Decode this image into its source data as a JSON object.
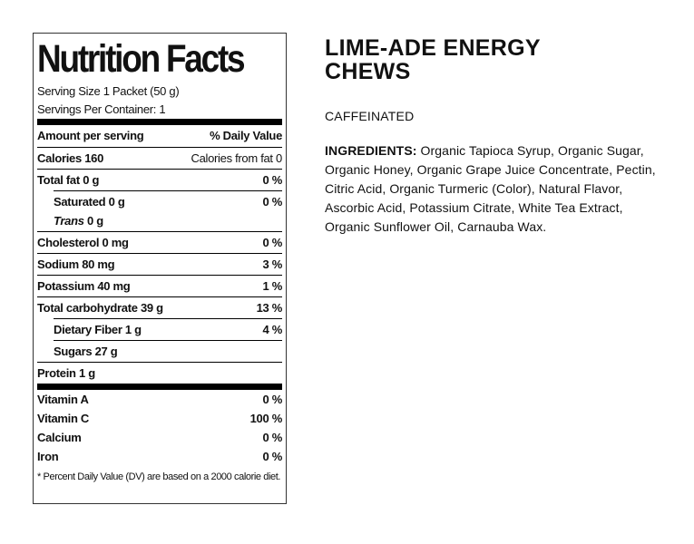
{
  "nutrition": {
    "title": "Nutrition Facts",
    "serving_size": "Serving Size 1 Packet (50 g)",
    "servings_per_container": "Servings Per Container: 1",
    "amount_per_serving": "Amount per serving",
    "daily_value_header": "% Daily Value",
    "calories_label": "Calories 160",
    "calories_from_fat": "Calories from fat  0",
    "nutrients": [
      {
        "name": "Total fat",
        "amount": "0 g",
        "dv": "0 %"
      },
      {
        "name": "Saturated",
        "amount": "0 g",
        "dv": "0 %"
      },
      {
        "name": "Trans",
        "amount": "0 g",
        "dv": ""
      },
      {
        "name": "Cholesterol",
        "amount": "0 mg",
        "dv": "0 %"
      },
      {
        "name": "Sodium",
        "amount": "80 mg",
        "dv": "3 %"
      },
      {
        "name": "Potassium",
        "amount": "40 mg",
        "dv": "1 %"
      },
      {
        "name": "Total carbohydrate",
        "amount": "39 g",
        "dv": "13 %"
      },
      {
        "name": "Dietary Fiber",
        "amount": "1 g",
        "dv": "4 %"
      },
      {
        "name": "Sugars",
        "amount": "27 g",
        "dv": ""
      },
      {
        "name": "Protein",
        "amount": "1 g",
        "dv": ""
      }
    ],
    "vitamins": [
      {
        "name": "Vitamin A",
        "dv": "0 %"
      },
      {
        "name": "Vitamin C",
        "dv": "100 %"
      },
      {
        "name": "Calcium",
        "dv": "0 %"
      },
      {
        "name": "Iron",
        "dv": "0 %"
      }
    ],
    "footnote": "* Percent Daily Value (DV) are based on a 2000 calorie diet."
  },
  "product": {
    "name_line1": "LIME-ADE ENERGY",
    "name_line2": "CHEWS",
    "caffeine": "CAFFEINATED",
    "ingredients_label": "INGREDIENTS:",
    "ingredients": "Organic Tapioca Syrup, Organic Sugar, Organic Honey, Organic Grape Juice Concentrate, Pectin, Citric Acid, Organic Turmeric (Color), Natural Flavor, Ascorbic Acid, Potassium Citrate, White Tea Extract, Organic Sunflower Oil, Carnauba Wax."
  }
}
